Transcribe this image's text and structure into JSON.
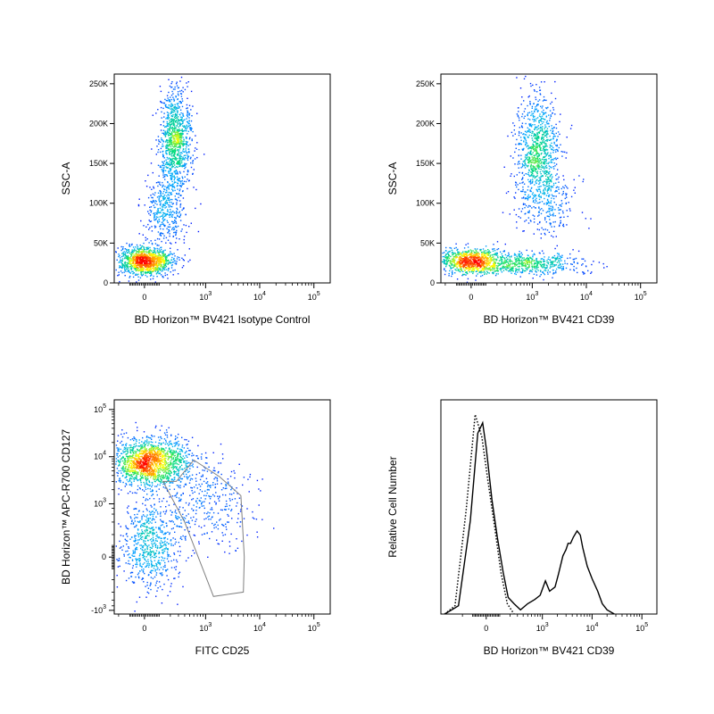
{
  "chart_data": [
    {
      "id": "p1",
      "type": "scatter",
      "style": "density-dot-plot",
      "xlabel": "BD Horizon™ BV421 Isotype Control",
      "ylabel": "SSC-A",
      "x_scale": "biexponential",
      "y_scale": "linear",
      "x_ticks": [
        {
          "value": 0,
          "base": "0",
          "exp": ""
        },
        {
          "value": 1000,
          "base": "10",
          "exp": "3"
        },
        {
          "value": 10000,
          "base": "10",
          "exp": "4"
        },
        {
          "value": 100000,
          "base": "10",
          "exp": "5"
        }
      ],
      "y_ticks": [
        {
          "value": 0,
          "label": "0"
        },
        {
          "value": 50000,
          "label": "50K"
        },
        {
          "value": 100000,
          "label": "100K"
        },
        {
          "value": 150000,
          "label": "150K"
        },
        {
          "value": 200000,
          "label": "200K"
        },
        {
          "value": 250000,
          "label": "250K"
        }
      ],
      "ylim": [
        0,
        262144
      ],
      "populations": [
        {
          "x_center": 0,
          "y_center": 28000,
          "x_spread_decades": 0.25,
          "y_spread": 9000,
          "weight": 0.45,
          "density": "high"
        },
        {
          "x_center": 250,
          "y_center": 180000,
          "x_spread_decades": 0.15,
          "y_spread": 30000,
          "weight": 0.4,
          "density": "high"
        },
        {
          "x_center": 150,
          "y_center": 90000,
          "x_spread_decades": 0.2,
          "y_spread": 25000,
          "weight": 0.15,
          "density": "low"
        }
      ]
    },
    {
      "id": "p2",
      "type": "scatter",
      "style": "density-dot-plot",
      "xlabel": "BD Horizon™ BV421 CD39",
      "ylabel": "SSC-A",
      "x_scale": "biexponential",
      "y_scale": "linear",
      "x_ticks": [
        {
          "value": 0,
          "base": "0",
          "exp": ""
        },
        {
          "value": 1000,
          "base": "10",
          "exp": "3"
        },
        {
          "value": 10000,
          "base": "10",
          "exp": "4"
        },
        {
          "value": 100000,
          "base": "10",
          "exp": "5"
        }
      ],
      "y_ticks": [
        {
          "value": 0,
          "label": "0"
        },
        {
          "value": 50000,
          "label": "50K"
        },
        {
          "value": 100000,
          "label": "100K"
        },
        {
          "value": 150000,
          "label": "150K"
        },
        {
          "value": 200000,
          "label": "200K"
        },
        {
          "value": 250000,
          "label": "250K"
        }
      ],
      "ylim": [
        0,
        262144
      ],
      "populations": [
        {
          "x_center": 0,
          "y_center": 28000,
          "x_spread_decades": 0.3,
          "y_spread": 8000,
          "weight": 0.35,
          "density": "high"
        },
        {
          "x_center": 1200,
          "y_center": 165000,
          "x_spread_decades": 0.2,
          "y_spread": 35000,
          "weight": 0.35,
          "density": "high"
        },
        {
          "x_center": 800,
          "y_center": 25000,
          "x_spread_decades": 0.5,
          "y_spread": 7000,
          "weight": 0.2,
          "density": "medium"
        },
        {
          "x_center": 2000,
          "y_center": 100000,
          "x_spread_decades": 0.3,
          "y_spread": 20000,
          "weight": 0.1,
          "density": "low"
        }
      ]
    },
    {
      "id": "p3",
      "type": "scatter",
      "style": "density-dot-plot",
      "xlabel": "FITC CD25",
      "ylabel": "BD Horizon™ APC-R700 CD127",
      "x_scale": "biexponential",
      "y_scale": "biexponential",
      "x_ticks": [
        {
          "value": 0,
          "base": "0",
          "exp": ""
        },
        {
          "value": 1000,
          "base": "10",
          "exp": "3"
        },
        {
          "value": 10000,
          "base": "10",
          "exp": "4"
        },
        {
          "value": 100000,
          "base": "10",
          "exp": "5"
        }
      ],
      "y_ticks": [
        {
          "value": -1000,
          "base": "-10",
          "exp": "3"
        },
        {
          "value": 0,
          "base": "0",
          "exp": ""
        },
        {
          "value": 1000,
          "base": "10",
          "exp": "3"
        },
        {
          "value": 10000,
          "base": "10",
          "exp": "4"
        },
        {
          "value": 100000,
          "base": "10",
          "exp": "5"
        }
      ],
      "populations": [
        {
          "x_center": 30,
          "y_center": 8000,
          "x_spread_decades": 0.35,
          "y_spread_decades": 0.25,
          "weight": 0.6,
          "density": "high"
        },
        {
          "x_center": 30,
          "y_center": 100,
          "x_spread_decades": 0.25,
          "y_spread_decades": 0.5,
          "weight": 0.25,
          "density": "low"
        },
        {
          "x_center": 1000,
          "y_center": 1000,
          "x_spread_decades": 0.45,
          "y_spread_decades": 0.5,
          "weight": 0.15,
          "density": "low"
        }
      ],
      "gate": {
        "shape": "polygon",
        "vertices": [
          [
            130,
            3000
          ],
          [
            270,
            3000
          ],
          [
            600,
            8500
          ],
          [
            1800,
            3800
          ],
          [
            4500,
            1500
          ],
          [
            5200,
            0
          ],
          [
            5000,
            -400
          ],
          [
            1400,
            -500
          ],
          [
            400,
            400
          ]
        ]
      }
    },
    {
      "id": "p4",
      "type": "line",
      "style": "histogram-overlay",
      "xlabel": "BD Horizon™ BV421 CD39",
      "ylabel": "Relative Cell Number",
      "x_scale": "biexponential",
      "x_ticks": [
        {
          "value": 0,
          "base": "0",
          "exp": ""
        },
        {
          "value": 1000,
          "base": "10",
          "exp": "3"
        },
        {
          "value": 10000,
          "base": "10",
          "exp": "4"
        },
        {
          "value": 100000,
          "base": "10",
          "exp": "5"
        }
      ],
      "ylim": [
        0,
        1
      ],
      "series": [
        {
          "dash": "solid",
          "points": [
            [
              -500,
              0
            ],
            [
              -250,
              0.04
            ],
            [
              -120,
              0.45
            ],
            [
              -60,
              0.87
            ],
            [
              -25,
              0.92
            ],
            [
              0,
              0.8
            ],
            [
              40,
              0.55
            ],
            [
              80,
              0.37
            ],
            [
              130,
              0.2
            ],
            [
              180,
              0.08
            ],
            [
              250,
              0.05
            ],
            [
              350,
              0.02
            ],
            [
              500,
              0.05
            ],
            [
              700,
              0.07
            ],
            [
              900,
              0.09
            ],
            [
              1000,
              0.12
            ],
            [
              1150,
              0.16
            ],
            [
              1400,
              0.11
            ],
            [
              1800,
              0.13
            ],
            [
              2100,
              0.19
            ],
            [
              2600,
              0.28
            ],
            [
              3000,
              0.31
            ],
            [
              3300,
              0.34
            ],
            [
              3700,
              0.34
            ],
            [
              4200,
              0.37
            ],
            [
              5000,
              0.4
            ],
            [
              5800,
              0.38
            ],
            [
              6500,
              0.32
            ],
            [
              8000,
              0.23
            ],
            [
              10000,
              0.17
            ],
            [
              13000,
              0.11
            ],
            [
              16000,
              0.05
            ],
            [
              20000,
              0.02
            ],
            [
              28000,
              0
            ]
          ]
        },
        {
          "dash": "dotted",
          "points": [
            [
              -500,
              0
            ],
            [
              -300,
              0.04
            ],
            [
              -160,
              0.5
            ],
            [
              -80,
              0.96
            ],
            [
              -30,
              0.85
            ],
            [
              10,
              0.65
            ],
            [
              60,
              0.42
            ],
            [
              110,
              0.2
            ],
            [
              170,
              0.05
            ],
            [
              250,
              0
            ]
          ]
        }
      ]
    }
  ]
}
